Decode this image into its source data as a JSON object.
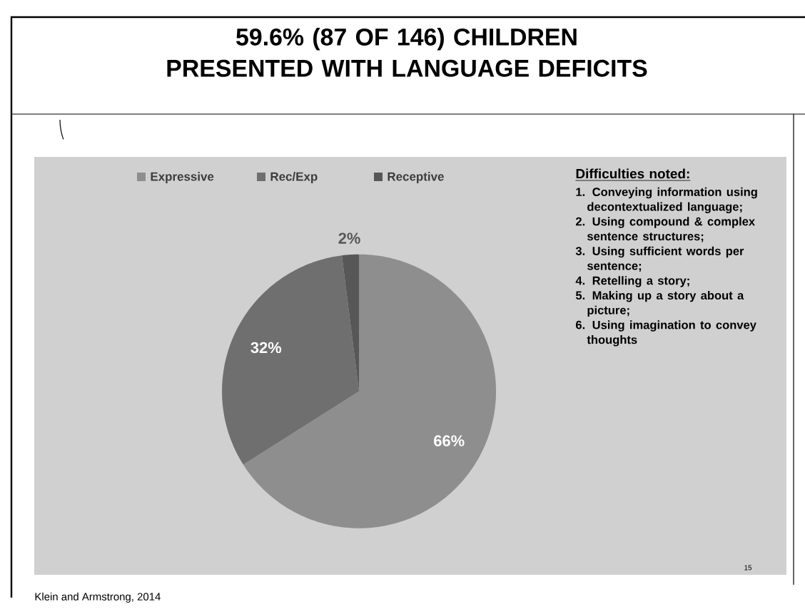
{
  "chart_data": {
    "type": "pie",
    "title": "59.6% (87 OF 146) CHILDREN PRESENTED WITH LANGUAGE DEFICITS",
    "categories": [
      "Expressive",
      "Rec/Exp",
      "Receptive"
    ],
    "values": [
      66,
      32,
      2
    ],
    "colors": [
      "#8e8e8e",
      "#6f6f6f",
      "#575757"
    ],
    "value_labels": [
      "66%",
      "32%",
      "2%"
    ],
    "legend": "top",
    "annotations": [
      "Difficulties noted:",
      "1. Conveying information using decontextualized language;",
      "2. Using compound & complex sentence structures;",
      "3. Using sufficient words per sentence;",
      "4. Retelling a story;",
      "5. Making up a story about a picture;",
      "6. Using imagination to convey thoughts",
      "Klein and Armstrong, 2014",
      "15"
    ]
  }
}
